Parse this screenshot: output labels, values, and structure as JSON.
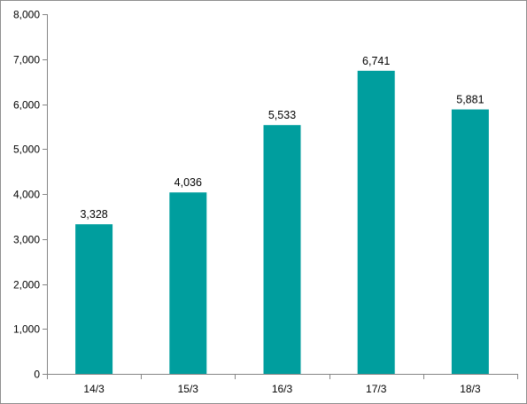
{
  "chart_data": {
    "type": "bar",
    "title": "",
    "xlabel": "",
    "ylabel": "",
    "categories": [
      "14/3",
      "15/3",
      "16/3",
      "17/3",
      "18/3"
    ],
    "values": [
      3328,
      4036,
      5533,
      6741,
      5881
    ],
    "value_labels": [
      "3,328",
      "4,036",
      "5,533",
      "6,741",
      "5,881"
    ],
    "ylim": [
      0,
      8000
    ],
    "y_ticks": [
      0,
      1000,
      2000,
      3000,
      4000,
      5000,
      6000,
      7000,
      8000
    ],
    "y_tick_labels": [
      "0",
      "1,000",
      "2,000",
      "3,000",
      "4,000",
      "5,000",
      "6,000",
      "7,000",
      "8,000"
    ],
    "grid": false,
    "legend": "none",
    "bar_color": "#009e9e",
    "axis_color": "#868686"
  }
}
